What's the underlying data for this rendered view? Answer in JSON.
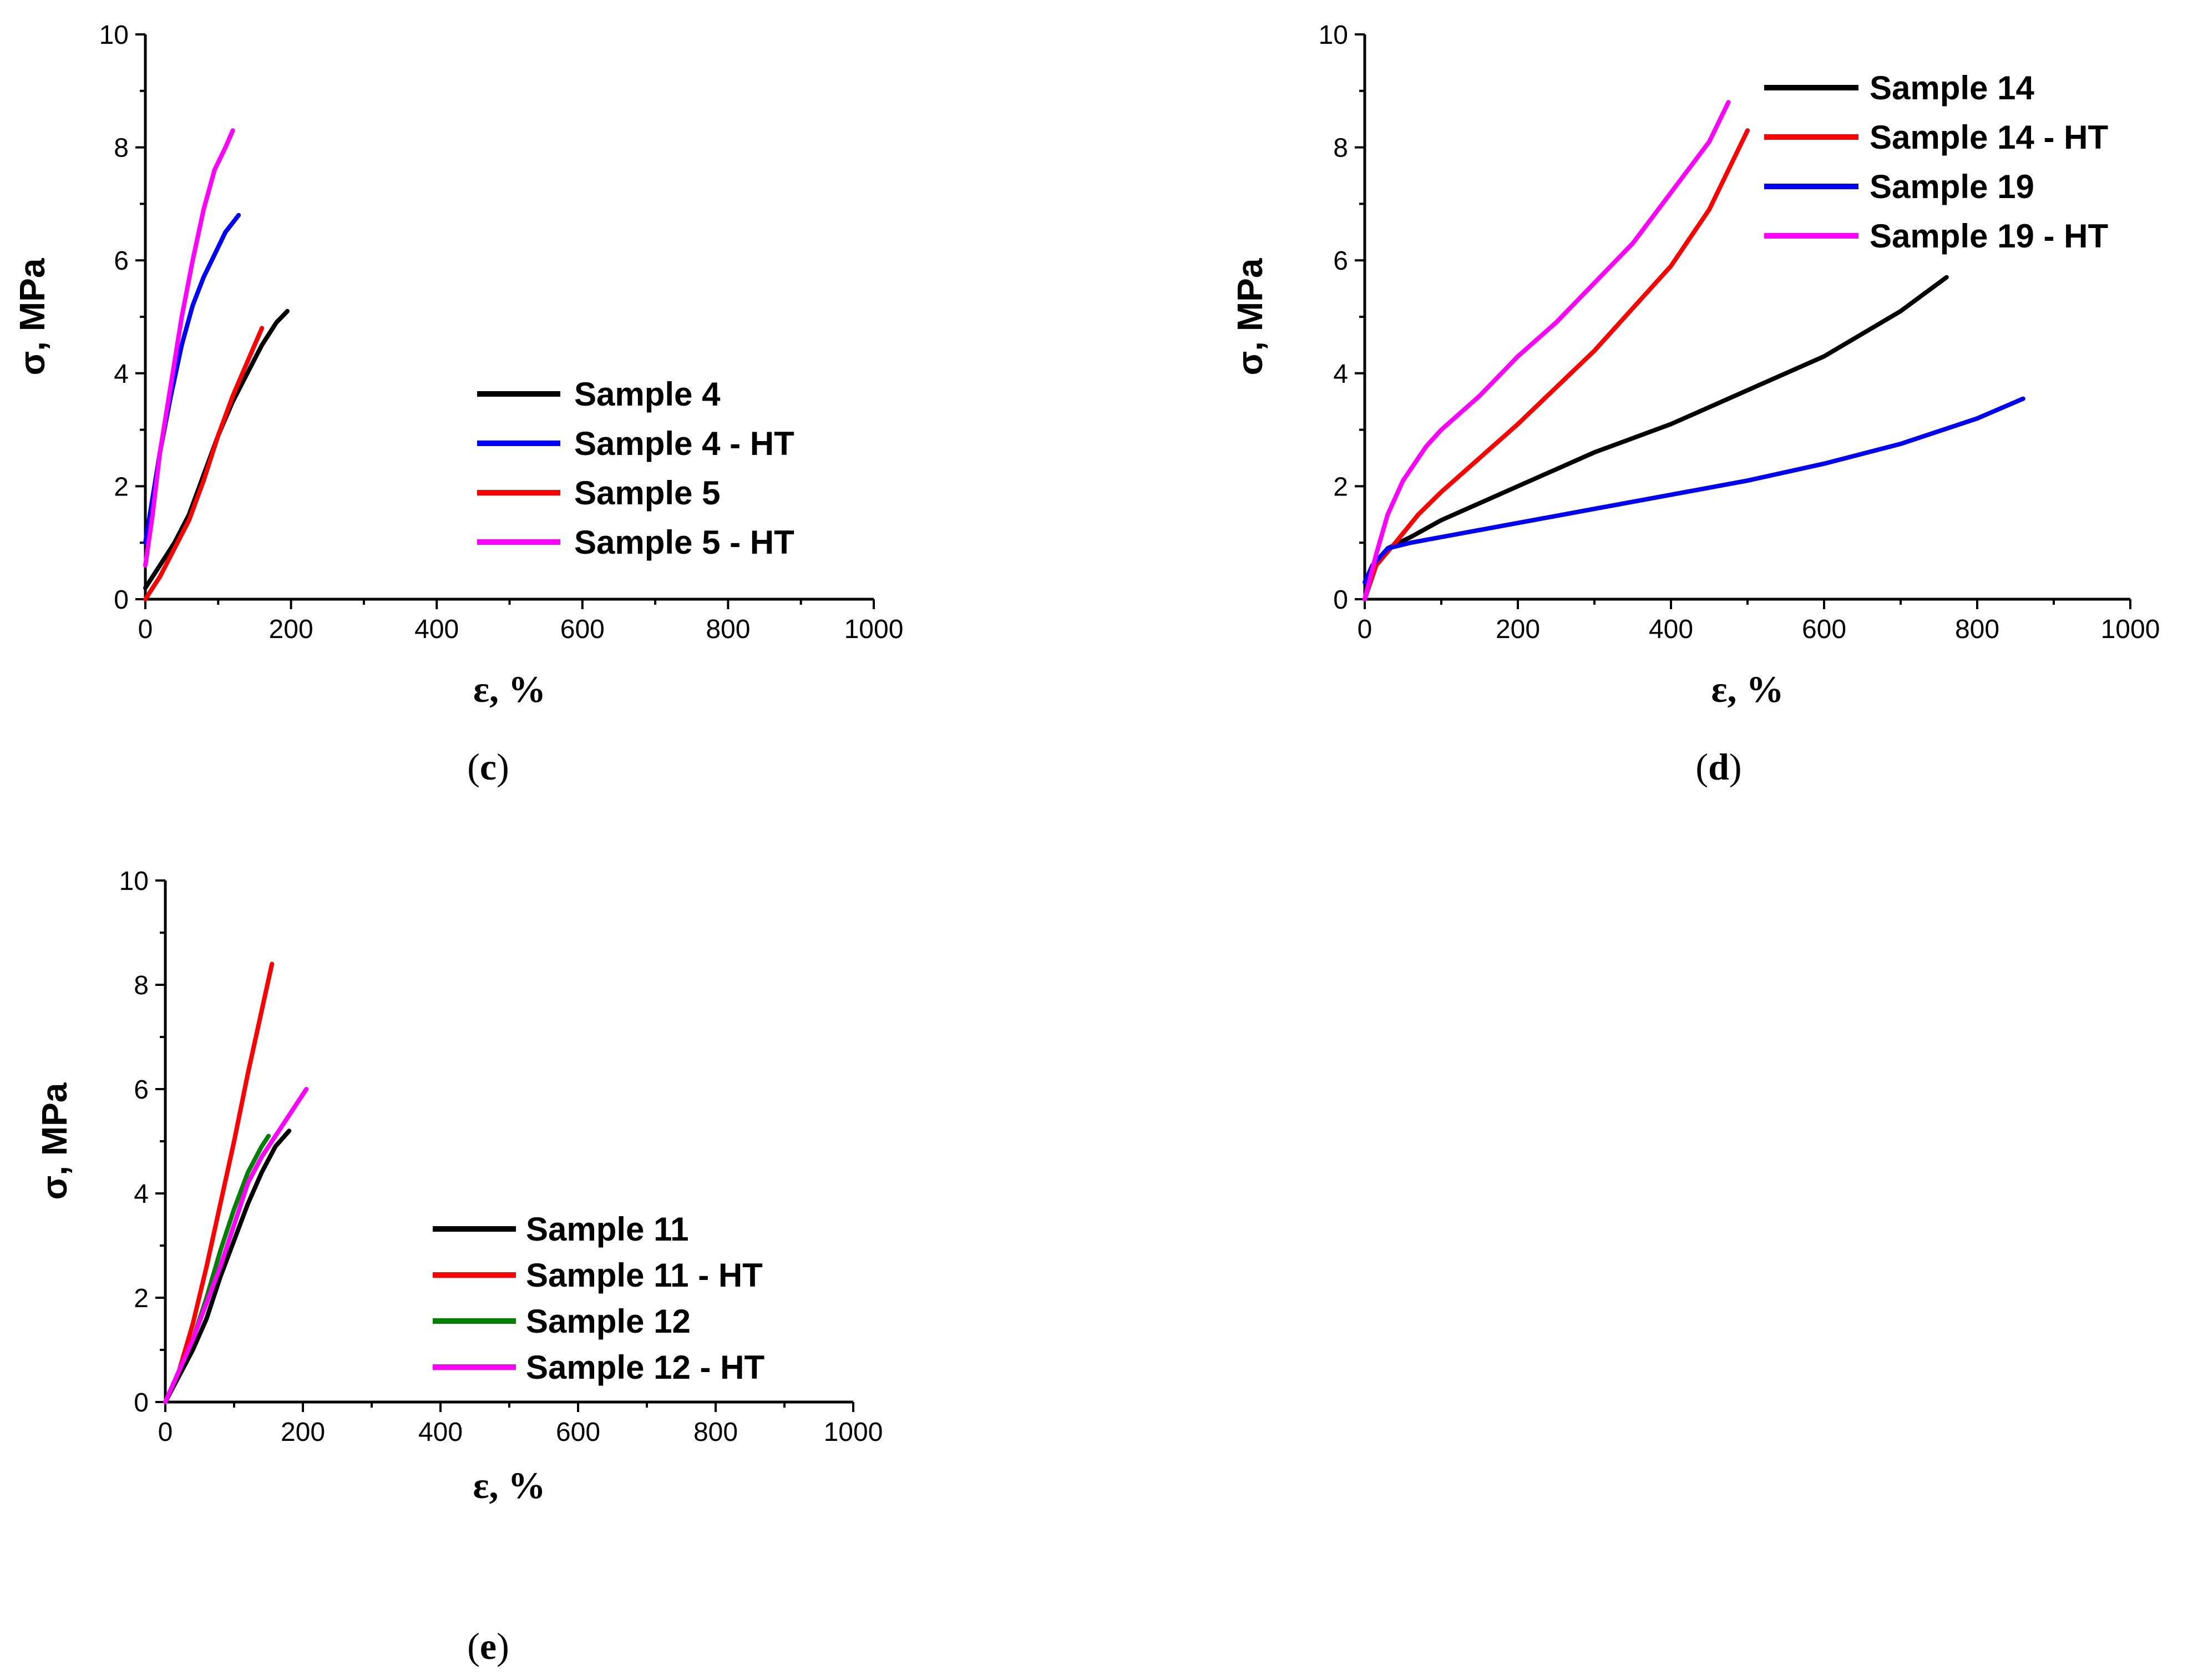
{
  "chart_data": [
    {
      "panel": "c",
      "type": "line",
      "xlabel": "ε, %",
      "ylabel": "σ, MPa",
      "xlim": [
        0,
        1000
      ],
      "ylim": [
        0,
        10
      ],
      "xticks": [
        "0",
        "200",
        "400",
        "600",
        "800",
        "1000"
      ],
      "yticks": [
        "0",
        "2",
        "4",
        "6",
        "8",
        "10"
      ],
      "legend_position": "center-right",
      "series": [
        {
          "name": "Sample 4",
          "color": "#000000",
          "points": [
            [
              0,
              0.2
            ],
            [
              20,
              0.6
            ],
            [
              40,
              1.0
            ],
            [
              60,
              1.5
            ],
            [
              80,
              2.2
            ],
            [
              100,
              2.9
            ],
            [
              120,
              3.5
            ],
            [
              140,
              4.0
            ],
            [
              160,
              4.5
            ],
            [
              180,
              4.9
            ],
            [
              195,
              5.1
            ]
          ]
        },
        {
          "name": "Sample 4 - HT",
          "color": "#0000ff",
          "points": [
            [
              0,
              1.0
            ],
            [
              10,
              1.8
            ],
            [
              20,
              2.6
            ],
            [
              35,
              3.6
            ],
            [
              50,
              4.5
            ],
            [
              65,
              5.2
            ],
            [
              80,
              5.7
            ],
            [
              95,
              6.1
            ],
            [
              110,
              6.5
            ],
            [
              128,
              6.8
            ]
          ]
        },
        {
          "name": "Sample 5",
          "color": "#ff0000",
          "points": [
            [
              0,
              0.0
            ],
            [
              20,
              0.4
            ],
            [
              40,
              0.9
            ],
            [
              60,
              1.4
            ],
            [
              80,
              2.1
            ],
            [
              100,
              2.9
            ],
            [
              120,
              3.6
            ],
            [
              140,
              4.2
            ],
            [
              160,
              4.8
            ]
          ]
        },
        {
          "name": "Sample 5 - HT",
          "color": "#ff00ff",
          "points": [
            [
              0,
              0.6
            ],
            [
              10,
              1.5
            ],
            [
              20,
              2.6
            ],
            [
              35,
              3.8
            ],
            [
              50,
              5.0
            ],
            [
              65,
              6.0
            ],
            [
              80,
              6.9
            ],
            [
              95,
              7.6
            ],
            [
              110,
              8.0
            ],
            [
              120,
              8.3
            ]
          ]
        }
      ]
    },
    {
      "panel": "d",
      "type": "line",
      "xlabel": "ε, %",
      "ylabel": "σ, MPa",
      "xlim": [
        0,
        1000
      ],
      "ylim": [
        0,
        10
      ],
      "xticks": [
        "0",
        "200",
        "400",
        "600",
        "800",
        "1000"
      ],
      "yticks": [
        "0",
        "2",
        "4",
        "6",
        "8",
        "10"
      ],
      "legend_position": "top-right",
      "series": [
        {
          "name": "Sample 14",
          "color": "#000000",
          "points": [
            [
              0,
              0.0
            ],
            [
              10,
              0.5
            ],
            [
              30,
              0.9
            ],
            [
              60,
              1.1
            ],
            [
              100,
              1.4
            ],
            [
              200,
              2.0
            ],
            [
              300,
              2.6
            ],
            [
              400,
              3.1
            ],
            [
              500,
              3.7
            ],
            [
              600,
              4.3
            ],
            [
              700,
              5.1
            ],
            [
              760,
              5.7
            ]
          ]
        },
        {
          "name": "Sample 14 - HT",
          "color": "#ff0000",
          "points": [
            [
              0,
              0.0
            ],
            [
              15,
              0.6
            ],
            [
              40,
              1.0
            ],
            [
              70,
              1.5
            ],
            [
              100,
              1.9
            ],
            [
              200,
              3.1
            ],
            [
              300,
              4.4
            ],
            [
              400,
              5.9
            ],
            [
              450,
              6.9
            ],
            [
              500,
              8.3
            ]
          ]
        },
        {
          "name": "Sample 19",
          "color": "#0000ff",
          "points": [
            [
              0,
              0.3
            ],
            [
              10,
              0.6
            ],
            [
              30,
              0.9
            ],
            [
              60,
              1.0
            ],
            [
              100,
              1.1
            ],
            [
              200,
              1.35
            ],
            [
              300,
              1.6
            ],
            [
              400,
              1.85
            ],
            [
              500,
              2.1
            ],
            [
              600,
              2.4
            ],
            [
              700,
              2.75
            ],
            [
              800,
              3.2
            ],
            [
              860,
              3.55
            ]
          ]
        },
        {
          "name": "Sample 19 - HT",
          "color": "#ff00ff",
          "points": [
            [
              0,
              0.0
            ],
            [
              15,
              0.8
            ],
            [
              30,
              1.5
            ],
            [
              50,
              2.1
            ],
            [
              80,
              2.7
            ],
            [
              100,
              3.0
            ],
            [
              150,
              3.6
            ],
            [
              200,
              4.3
            ],
            [
              250,
              4.9
            ],
            [
              300,
              5.6
            ],
            [
              350,
              6.3
            ],
            [
              400,
              7.2
            ],
            [
              450,
              8.1
            ],
            [
              475,
              8.8
            ]
          ]
        }
      ]
    },
    {
      "panel": "e",
      "type": "line",
      "xlabel": "ε, %",
      "ylabel": "σ, MPa",
      "xlim": [
        0,
        1000
      ],
      "ylim": [
        0,
        10
      ],
      "xticks": [
        "0",
        "200",
        "400",
        "600",
        "800",
        "1000"
      ],
      "yticks": [
        "0",
        "2",
        "4",
        "6",
        "8",
        "10"
      ],
      "legend_position": "center-right",
      "series": [
        {
          "name": "Sample 11",
          "color": "#000000",
          "points": [
            [
              0,
              0.0
            ],
            [
              20,
              0.5
            ],
            [
              40,
              1.0
            ],
            [
              60,
              1.6
            ],
            [
              80,
              2.4
            ],
            [
              100,
              3.1
            ],
            [
              120,
              3.8
            ],
            [
              140,
              4.4
            ],
            [
              160,
              4.9
            ],
            [
              180,
              5.2
            ]
          ]
        },
        {
          "name": "Sample 11 - HT",
          "color": "#ff0000",
          "points": [
            [
              0,
              0.0
            ],
            [
              20,
              0.6
            ],
            [
              40,
              1.5
            ],
            [
              60,
              2.6
            ],
            [
              80,
              3.8
            ],
            [
              100,
              5.0
            ],
            [
              120,
              6.3
            ],
            [
              140,
              7.5
            ],
            [
              155,
              8.4
            ]
          ]
        },
        {
          "name": "Sample 12",
          "color": "#008000",
          "points": [
            [
              0,
              0.0
            ],
            [
              20,
              0.6
            ],
            [
              40,
              1.2
            ],
            [
              60,
              2.0
            ],
            [
              80,
              2.9
            ],
            [
              100,
              3.7
            ],
            [
              120,
              4.4
            ],
            [
              140,
              4.9
            ],
            [
              150,
              5.1
            ]
          ]
        },
        {
          "name": "Sample 12 - HT",
          "color": "#ff00ff",
          "points": [
            [
              0,
              0.0
            ],
            [
              20,
              0.6
            ],
            [
              40,
              1.2
            ],
            [
              60,
              1.9
            ],
            [
              80,
              2.6
            ],
            [
              100,
              3.4
            ],
            [
              120,
              4.2
            ],
            [
              140,
              4.7
            ],
            [
              160,
              5.1
            ],
            [
              180,
              5.5
            ],
            [
              205,
              6.0
            ]
          ]
        }
      ]
    }
  ],
  "panel_labels": {
    "c": {
      "open": "(",
      "letter": "c",
      "close": ")"
    },
    "d": {
      "open": "(",
      "letter": "d",
      "close": ")"
    },
    "e": {
      "open": "(",
      "letter": "e",
      "close": ")"
    }
  }
}
